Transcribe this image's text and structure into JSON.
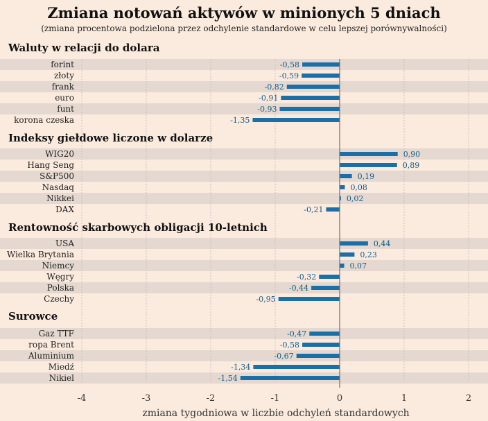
{
  "colors": {
    "background": "#fbebde",
    "stripe": "#e4d8d0",
    "bar": "#1a6fa8",
    "grid": "#c9c2bd",
    "zero_line": "#6e6e6e",
    "title": "#111111",
    "text": "#222222",
    "value_label": "#0f5d8c"
  },
  "chart_data": {
    "type": "bar",
    "orientation": "horizontal",
    "title": "Zmiana notowań aktywów w minionych 5 dniach",
    "subtitle": "(zmiana procentowa podzielona przez odchylenie standardowe w celu lepszej porównywalności)",
    "xlabel": "zmiana tygodniowa w liczbie odchyleń standardowych",
    "xlim": [
      -4,
      2
    ],
    "xticks": [
      "-4",
      "-3",
      "-2",
      "-1",
      "0",
      "1",
      "2"
    ],
    "grid": true,
    "groups": [
      {
        "title": "Waluty w relacji do dolara",
        "items": [
          {
            "label": "forint",
            "value": -0.58,
            "value_label": "-0,58"
          },
          {
            "label": "złoty",
            "value": -0.59,
            "value_label": "-0,59"
          },
          {
            "label": "frank",
            "value": -0.82,
            "value_label": "-0,82"
          },
          {
            "label": "euro",
            "value": -0.91,
            "value_label": "-0,91"
          },
          {
            "label": "funt",
            "value": -0.93,
            "value_label": "-0,93"
          },
          {
            "label": "korona czeska",
            "value": -1.35,
            "value_label": "-1,35"
          }
        ]
      },
      {
        "title": "Indeksy giełdowe liczone w dolarze",
        "items": [
          {
            "label": "WIG20",
            "value": 0.9,
            "value_label": "0,90"
          },
          {
            "label": "Hang Seng",
            "value": 0.89,
            "value_label": "0,89"
          },
          {
            "label": "S&P500",
            "value": 0.19,
            "value_label": "0,19"
          },
          {
            "label": "Nasdaq",
            "value": 0.08,
            "value_label": "0,08"
          },
          {
            "label": "Nikkei",
            "value": 0.02,
            "value_label": "0,02"
          },
          {
            "label": "DAX",
            "value": -0.21,
            "value_label": "-0,21"
          }
        ]
      },
      {
        "title": "Rentowność skarbowych obligacji 10-letnich",
        "items": [
          {
            "label": "USA",
            "value": 0.44,
            "value_label": "0,44"
          },
          {
            "label": "Wielka Brytania",
            "value": 0.23,
            "value_label": "0,23"
          },
          {
            "label": "Niemcy",
            "value": 0.07,
            "value_label": "0,07"
          },
          {
            "label": "Węgry",
            "value": -0.32,
            "value_label": "-0,32"
          },
          {
            "label": "Polska",
            "value": -0.44,
            "value_label": "-0,44"
          },
          {
            "label": "Czechy",
            "value": -0.95,
            "value_label": "-0,95"
          }
        ]
      },
      {
        "title": "Surowce",
        "items": [
          {
            "label": "Gaz TTF",
            "value": -0.47,
            "value_label": "-0,47"
          },
          {
            "label": "ropa Brent",
            "value": -0.58,
            "value_label": "-0,58"
          },
          {
            "label": "Aluminium",
            "value": -0.67,
            "value_label": "-0,67"
          },
          {
            "label": "Miedź",
            "value": -1.34,
            "value_label": "-1,34"
          },
          {
            "label": "Nikiel",
            "value": -1.54,
            "value_label": "-1,54"
          }
        ]
      }
    ]
  }
}
